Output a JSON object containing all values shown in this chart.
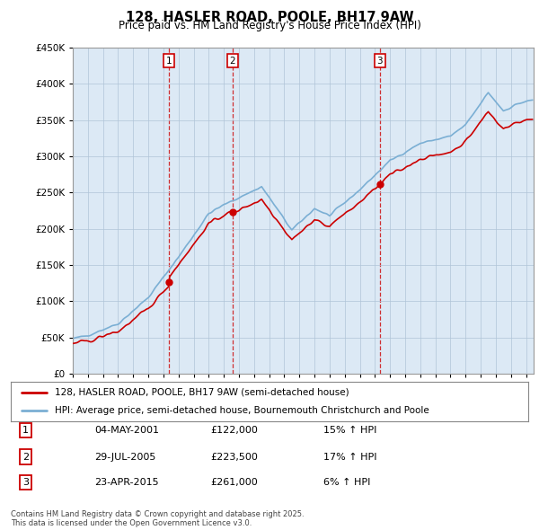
{
  "title": "128, HASLER ROAD, POOLE, BH17 9AW",
  "subtitle": "Price paid vs. HM Land Registry's House Price Index (HPI)",
  "legend_line1": "128, HASLER ROAD, POOLE, BH17 9AW (semi-detached house)",
  "legend_line2": "HPI: Average price, semi-detached house, Bournemouth Christchurch and Poole",
  "sale1_date": "04-MAY-2001",
  "sale1_price": "£122,000",
  "sale1_hpi": "15% ↑ HPI",
  "sale1_year": 2001.37,
  "sale1_value": 122000,
  "sale2_date": "29-JUL-2005",
  "sale2_price": "£223,500",
  "sale2_hpi": "17% ↑ HPI",
  "sale2_year": 2005.58,
  "sale2_value": 223500,
  "sale3_date": "23-APR-2015",
  "sale3_price": "£261,000",
  "sale3_hpi": "6% ↑ HPI",
  "sale3_year": 2015.31,
  "sale3_value": 261000,
  "footer": "Contains HM Land Registry data © Crown copyright and database right 2025.\nThis data is licensed under the Open Government Licence v3.0.",
  "house_color": "#cc0000",
  "hpi_color": "#7bafd4",
  "plot_bg_color": "#dce9f5",
  "background_color": "#ffffff",
  "ylim": [
    0,
    450000
  ],
  "yticks": [
    0,
    50000,
    100000,
    150000,
    200000,
    250000,
    300000,
    350000,
    400000,
    450000
  ],
  "xmin": 1995,
  "xmax": 2025.5
}
